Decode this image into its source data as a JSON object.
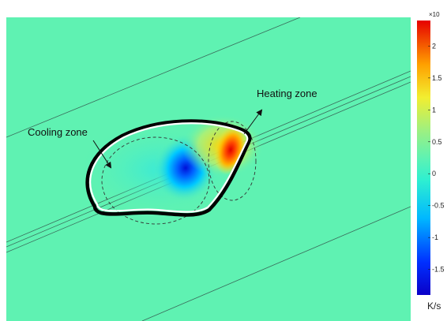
{
  "figure": {
    "background_color": "#5ff2b2",
    "annotations": {
      "heating_zone": "Heating zone",
      "cooling_zone": "Cooling zone"
    }
  },
  "colorbar": {
    "multiplier_label": "×10",
    "unit_label": "K/s",
    "colormap": "rainbow (blue → cyan → green → yellow → red)",
    "ticks": [
      {
        "label": "2",
        "value": 2
      },
      {
        "label": "1.5",
        "value": 1.5
      },
      {
        "label": "1",
        "value": 1
      },
      {
        "label": "0.5",
        "value": 0.5
      },
      {
        "label": "0",
        "value": 0
      },
      {
        "label": "-0.5",
        "value": -0.5
      },
      {
        "label": "-1",
        "value": -1
      },
      {
        "label": "-1.5",
        "value": -1.5
      }
    ],
    "range": [
      -1.9,
      2.4
    ]
  }
}
